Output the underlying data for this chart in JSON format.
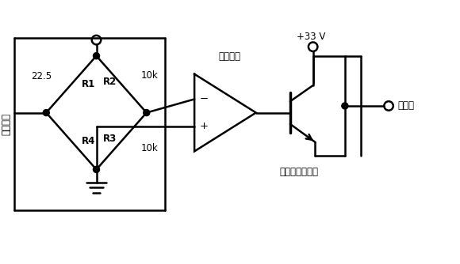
{
  "bg_color": "#ffffff",
  "line_color": "#000000",
  "line_width": 1.8,
  "fig_width": 5.8,
  "fig_height": 3.34,
  "dpi": 100,
  "labels": {
    "R1": "R1",
    "R2": "R2",
    "R3": "R3",
    "R4": "R4",
    "val_top_left": "22.5",
    "val_top_right": "10k",
    "val_bot_right": "10k",
    "diff_amp": "差动运放",
    "power_transistor": "功率放大晶体管",
    "voltage": "+33 V",
    "linearizer": "线性器",
    "hot_wire": "铂电阻丝"
  },
  "font_size": 8.5
}
